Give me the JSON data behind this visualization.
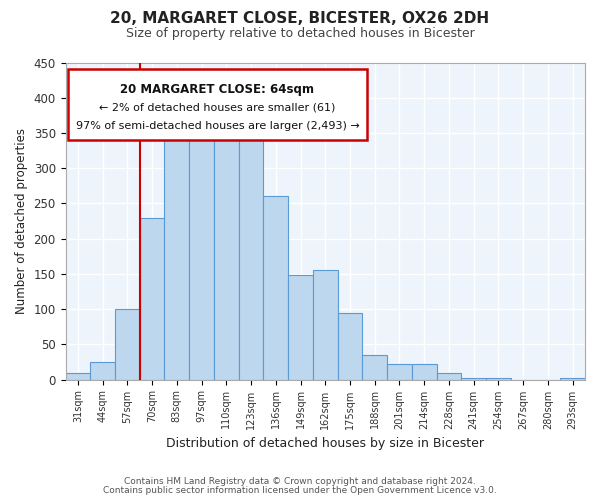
{
  "title": "20, MARGARET CLOSE, BICESTER, OX26 2DH",
  "subtitle": "Size of property relative to detached houses in Bicester",
  "xlabel": "Distribution of detached houses by size in Bicester",
  "ylabel": "Number of detached properties",
  "bar_color": "#BDD7EE",
  "bar_edge_color": "#5B9BD5",
  "bar_edge_width": 0.8,
  "background_color": "#EEF4FB",
  "grid_color": "#FFFFFF",
  "ylim": [
    0,
    450
  ],
  "yticks": [
    0,
    50,
    100,
    150,
    200,
    250,
    300,
    350,
    400,
    450
  ],
  "bin_labels": [
    "31sqm",
    "44sqm",
    "57sqm",
    "70sqm",
    "83sqm",
    "97sqm",
    "110sqm",
    "123sqm",
    "136sqm",
    "149sqm",
    "162sqm",
    "175sqm",
    "188sqm",
    "201sqm",
    "214sqm",
    "228sqm",
    "241sqm",
    "254sqm",
    "267sqm",
    "280sqm",
    "293sqm"
  ],
  "bin_values": [
    10,
    25,
    100,
    230,
    365,
    370,
    375,
    355,
    260,
    148,
    155,
    95,
    35,
    22,
    22,
    10,
    2,
    2,
    0,
    0,
    2
  ],
  "annotation_text_line1": "20 MARGARET CLOSE: 64sqm",
  "annotation_text_line2": "← 2% of detached houses are smaller (61)",
  "annotation_text_line3": "97% of semi-detached houses are larger (2,493) →",
  "footer_line1": "Contains HM Land Registry data © Crown copyright and database right 2024.",
  "footer_line2": "Contains public sector information licensed under the Open Government Licence v3.0."
}
